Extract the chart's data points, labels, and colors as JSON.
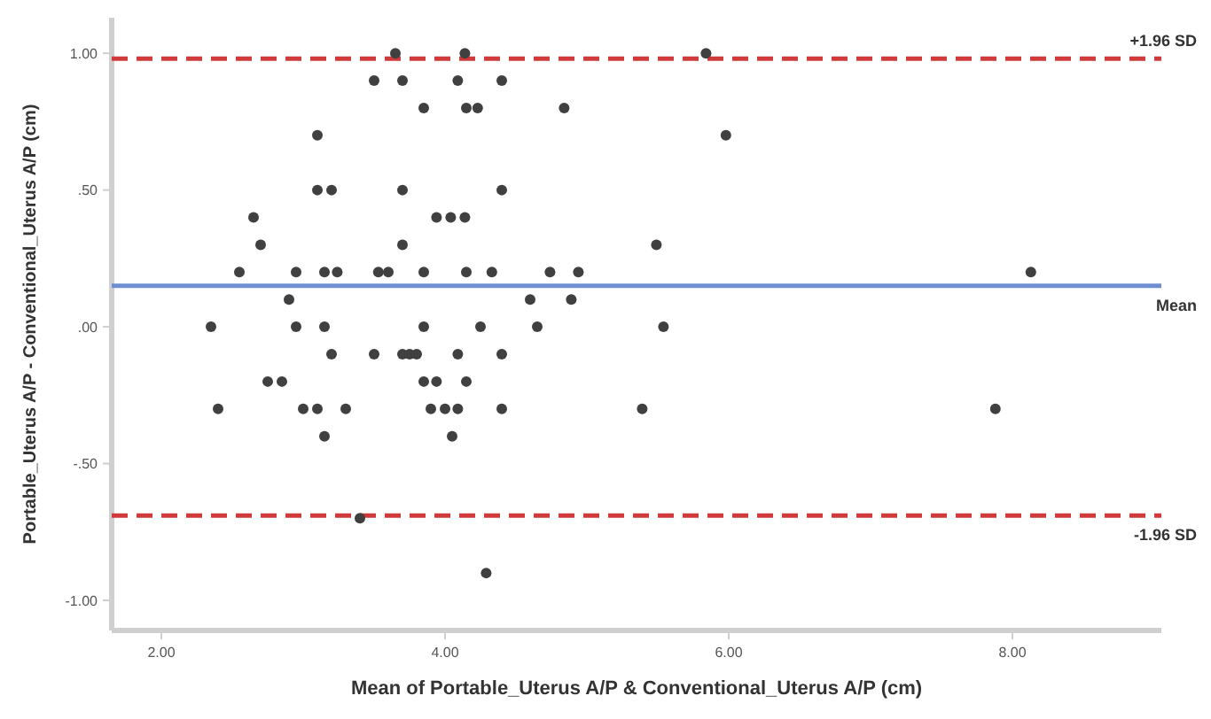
{
  "chart_data": {
    "type": "scatter",
    "xlabel": "Mean of Portable_Uterus A/P & Conventional_Uterus A/P (cm)",
    "ylabel": "Portable_Uterus A/P - Conventional_Uterus A/P (cm)",
    "xlim": [
      1.65,
      9.05
    ],
    "ylim": [
      -1.11,
      1.13
    ],
    "xticks": [
      {
        "value": 2,
        "label": "2.00"
      },
      {
        "value": 4,
        "label": "4.00"
      },
      {
        "value": 6,
        "label": "6.00"
      },
      {
        "value": 8,
        "label": "8.00"
      }
    ],
    "yticks": [
      {
        "value": -1,
        "label": "-1.00"
      },
      {
        "value": -0.5,
        "label": "-.50"
      },
      {
        "value": 0,
        "label": ".00"
      },
      {
        "value": 0.5,
        "label": ".50"
      },
      {
        "value": 1,
        "label": "1.00"
      }
    ],
    "grid": false,
    "marker": "circle",
    "series": [
      {
        "color": "#404040",
        "x": [
          3.65,
          4.14,
          5.84,
          3.5,
          3.7,
          4.09,
          4.4,
          3.85,
          4.15,
          4.23,
          4.84,
          3.1,
          5.98,
          3.1,
          3.2,
          3.7,
          4.4,
          2.65,
          3.94,
          4.04,
          4.14,
          2.7,
          3.7,
          5.49,
          2.55,
          2.95,
          3.15,
          3.24,
          3.53,
          3.6,
          3.85,
          4.15,
          4.33,
          4.74,
          4.94,
          8.13,
          2.9,
          4.6,
          4.89,
          2.35,
          2.95,
          3.15,
          3.85,
          4.25,
          4.65,
          5.54,
          3.2,
          3.5,
          3.7,
          3.75,
          3.8,
          4.09,
          4.4,
          2.75,
          2.85,
          3.85,
          3.94,
          4.15,
          2.4,
          3.0,
          3.1,
          3.3,
          3.9,
          4.0,
          4.09,
          4.4,
          5.39,
          7.88,
          3.15,
          4.05,
          3.4,
          4.29
        ],
        "values": [
          1.0,
          1.0,
          1.0,
          0.9,
          0.9,
          0.9,
          0.9,
          0.8,
          0.8,
          0.8,
          0.8,
          0.7,
          0.7,
          0.5,
          0.5,
          0.5,
          0.5,
          0.4,
          0.4,
          0.4,
          0.4,
          0.3,
          0.3,
          0.3,
          0.2,
          0.2,
          0.2,
          0.2,
          0.2,
          0.2,
          0.2,
          0.2,
          0.2,
          0.2,
          0.2,
          0.2,
          0.1,
          0.1,
          0.1,
          0.0,
          0.0,
          0.0,
          0.0,
          0.0,
          0.0,
          0.0,
          -0.1,
          -0.1,
          -0.1,
          -0.1,
          -0.1,
          -0.1,
          -0.1,
          -0.2,
          -0.2,
          -0.2,
          -0.2,
          -0.2,
          -0.3,
          -0.3,
          -0.3,
          -0.3,
          -0.3,
          -0.3,
          -0.3,
          -0.3,
          -0.3,
          -0.3,
          -0.4,
          -0.4,
          -0.7,
          -0.9
        ]
      }
    ],
    "ref_lines": [
      {
        "axis": "y",
        "value": 0.98,
        "label": "+1.96 SD",
        "color": "#d03a3a",
        "line_style": "dashed"
      },
      {
        "axis": "y",
        "value": 0.15,
        "label": "Mean",
        "color": "#6f8fd0",
        "line_style": "solid"
      },
      {
        "axis": "y",
        "value": -0.69,
        "label": "-1.96 SD",
        "color": "#d03a3a",
        "line_style": "dashed"
      }
    ]
  }
}
